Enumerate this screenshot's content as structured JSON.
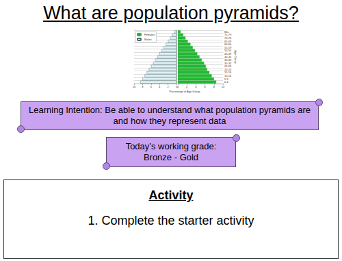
{
  "header": {
    "title": "What are population pyramids?"
  },
  "chart_data": {
    "type": "bar",
    "orientation": "horizontal",
    "categories": [
      "0-4",
      "5-9",
      "10-14",
      "15-19",
      "20-24",
      "25-29",
      "30-34",
      "35-39",
      "40-44",
      "45-49",
      "50-54",
      "55-59",
      "60-64",
      "65-69",
      "70-74",
      "75-79",
      "80+"
    ],
    "series": [
      {
        "name": "Males",
        "color": "#dff1f4",
        "values": [
          8.5,
          8,
          7.5,
          7,
          6.5,
          6,
          5.5,
          5,
          4.5,
          4,
          3.5,
          3,
          2.5,
          2,
          1.5,
          1,
          0.5
        ]
      },
      {
        "name": "Females",
        "color": "#22b833",
        "values": [
          8.5,
          8,
          7.5,
          7,
          6.5,
          6.2,
          5.8,
          5.3,
          4.8,
          4.3,
          3.8,
          3.3,
          2.8,
          2.2,
          1.7,
          1.2,
          0.6
        ]
      }
    ],
    "xlim": [
      0,
      10
    ],
    "xticks": [
      0,
      2,
      4,
      6,
      8,
      10
    ],
    "x_label": "Percentage in Age Group",
    "y_label": "Age Group",
    "legend": "upper left",
    "grid": true
  },
  "banners": [
    {
      "lines": [
        "Learning Intention: Be able to understand what population pyramids are",
        "and how they represent data"
      ]
    },
    {
      "lines": [
        "Today’s working grade:",
        "Bronze - Gold"
      ]
    }
  ],
  "activity": {
    "heading": "Activity",
    "items": [
      {
        "label": "1.",
        "text": "Complete the starter activity"
      }
    ]
  }
}
